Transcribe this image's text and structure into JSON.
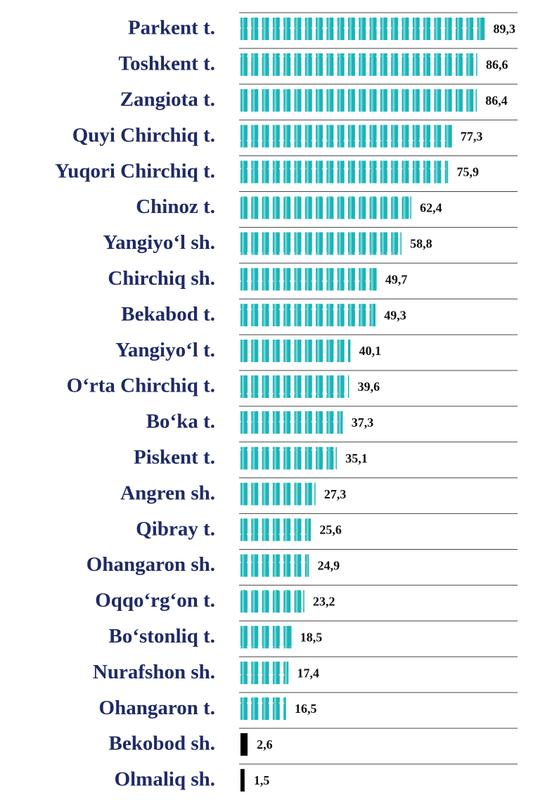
{
  "chart_data": {
    "type": "bar",
    "orientation": "horizontal",
    "categories": [
      "Parkent t.",
      "Toshkent t.",
      "Zangiota t.",
      "Quyi Chirchiq t.",
      "Yuqori Chirchiq t.",
      "Chinoz t.",
      "Yangiyo‘l sh.",
      "Chirchiq sh.",
      "Bekabod t.",
      "Yangiyo‘l t.",
      "O‘rta Chirchiq t.",
      "Bo‘ka t.",
      "Piskent t.",
      "Angren sh.",
      "Qibray t.",
      "Ohangaron sh.",
      "Oqqo‘rg‘on t.",
      "Bo‘stonliq t.",
      "Nurafshon sh.",
      "Ohangaron t.",
      "Bekobod sh.",
      "Olmaliq sh."
    ],
    "values": [
      89.3,
      86.6,
      86.4,
      77.3,
      75.9,
      62.4,
      58.8,
      49.7,
      49.3,
      40.1,
      39.6,
      37.3,
      35.1,
      27.3,
      25.6,
      24.9,
      23.2,
      18.5,
      17.4,
      16.5,
      2.6,
      1.5
    ],
    "value_labels": [
      "89,3",
      "86,6",
      "86,4",
      "77,3",
      "75,9",
      "62,4",
      "58,8",
      "49,7",
      "49,3",
      "40,1",
      "39,6",
      "37,3",
      "35,1",
      "27,3",
      "25,6",
      "24,9",
      "23,2",
      "18,5",
      "17,4",
      "16,5",
      "2,6",
      "1,5"
    ],
    "colors": [
      "#1db3b6",
      "#1db3b6",
      "#1db3b6",
      "#1db3b6",
      "#1db3b6",
      "#1db3b6",
      "#1db3b6",
      "#1db3b6",
      "#1db3b6",
      "#1db3b6",
      "#1db3b6",
      "#1db3b6",
      "#1db3b6",
      "#1db3b6",
      "#1db3b6",
      "#1db3b6",
      "#1db3b6",
      "#1db3b6",
      "#1db3b6",
      "#1db3b6",
      "#000000",
      "#000000"
    ]
  }
}
